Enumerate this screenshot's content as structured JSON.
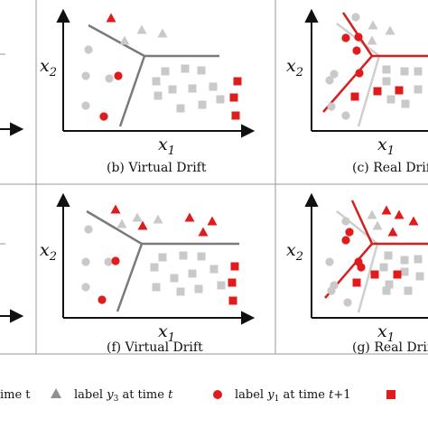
{
  "colors": {
    "gray_marker": "#c9c9c9",
    "dark_gray_marker": "#8f8f8f",
    "red_marker": "#e01b1b",
    "old_boundary": "#7a7a7a",
    "new_boundary": "#d42020",
    "faded_boundary": "#cfcfcf"
  },
  "axes": {
    "x_label": "x",
    "x_sub": "1",
    "y_label": "x",
    "y_sub": "2"
  },
  "panels": [
    {
      "id": "b",
      "caption": "(b) Virtual Drift"
    },
    {
      "id": "c",
      "caption": "(c) Real Drift"
    },
    {
      "id": "f",
      "caption": "(f) Virtual Drift"
    },
    {
      "id": "g",
      "caption": "(g) Real Drift"
    }
  ],
  "legend": [
    {
      "icon": "gray-triangle",
      "text": "ime t"
    },
    {
      "icon": "dark-gray-triangle",
      "text": "label y3 at time t",
      "parts": [
        "label ",
        "y",
        "3",
        " at time ",
        "t"
      ]
    },
    {
      "icon": "red-circle",
      "text": "label y1 at time t+1",
      "parts": [
        "label ",
        "y",
        "1",
        " at time ",
        "t",
        "+1"
      ]
    },
    {
      "icon": "red-square",
      "text": ""
    }
  ]
}
